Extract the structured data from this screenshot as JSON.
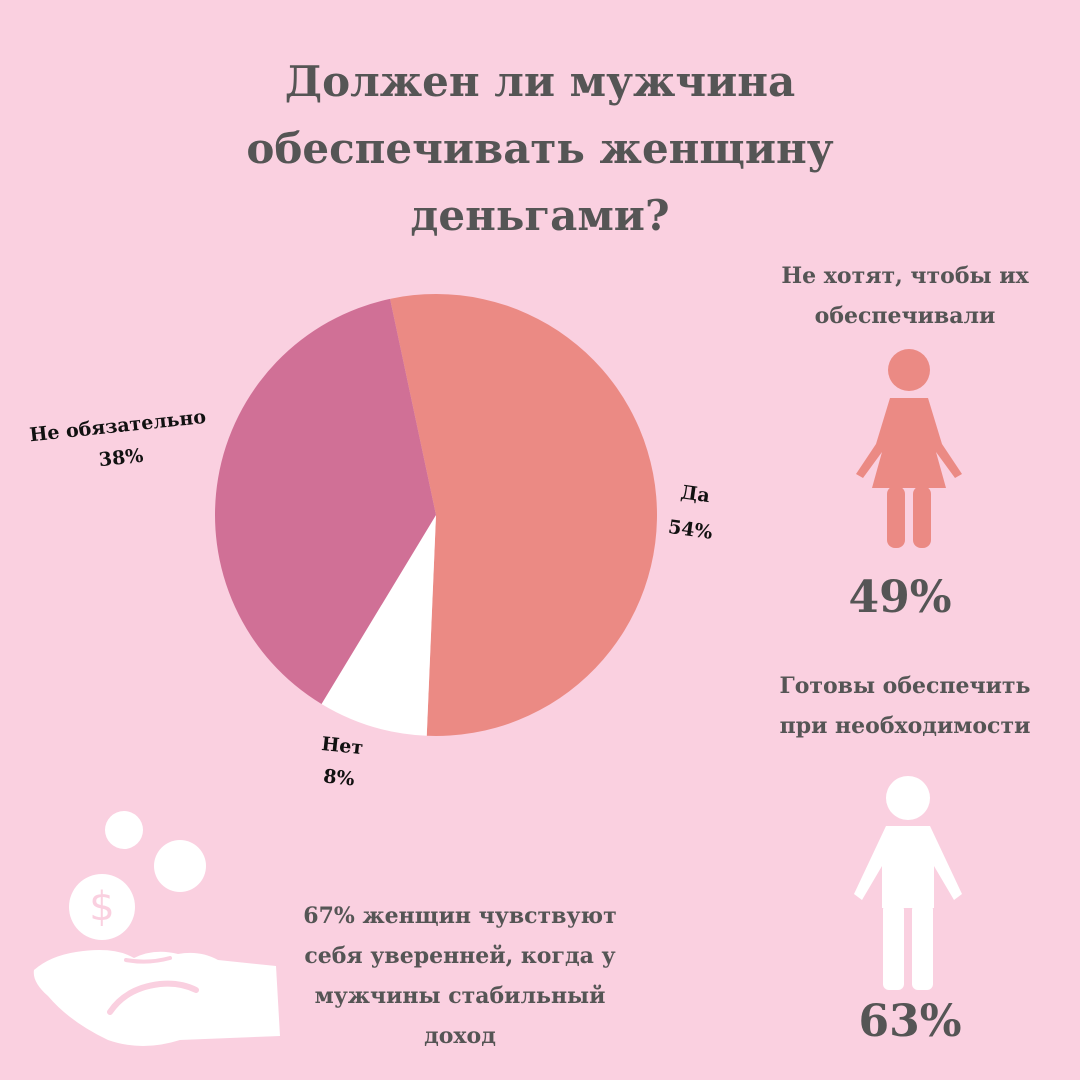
{
  "title_lines": [
    "Должен ли мужчина",
    "обеспечивать женщину",
    "деньгами?"
  ],
  "chart_data": {
    "type": "pie",
    "title": "Должен ли мужчина обеспечивать женщину деньгами?",
    "slices": [
      {
        "label": "Да",
        "value": 54,
        "value_label": "54%",
        "color": "#eb8a84"
      },
      {
        "label": "Нет",
        "value": 8,
        "value_label": "8%",
        "color": "#ffffff"
      },
      {
        "label": "Не обязательно",
        "value": 38,
        "value_label": "38%",
        "color": "#d07096"
      }
    ]
  },
  "stat_women": {
    "caption_lines": [
      "Не хотят, чтобы их",
      "обеспечивали"
    ],
    "value": "49%",
    "icon": "woman-icon",
    "color": "#eb8a84"
  },
  "stat_men": {
    "caption_lines": [
      "Готовы обеспечить",
      "при необходимости"
    ],
    "value": "63%",
    "icon": "man-icon",
    "color": "#ffffff"
  },
  "bottom_note_lines": [
    "67% женщин чувствуют",
    "себя уверенней, когда у",
    "мужчины стабильный",
    "доход"
  ],
  "money_icon": "hand-coins-dollar-icon"
}
